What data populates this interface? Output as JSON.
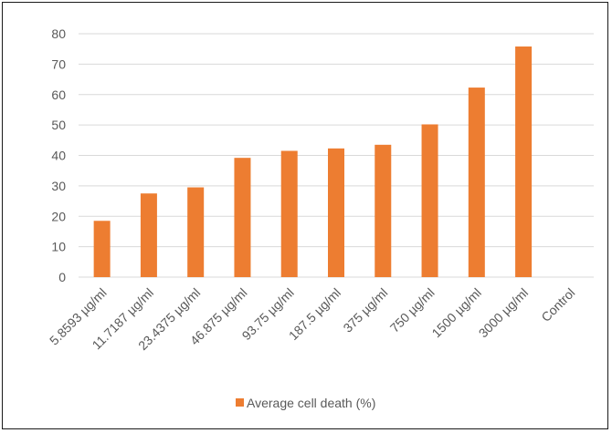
{
  "chart_data": {
    "type": "bar",
    "categories": [
      "5.8593 µg/ml",
      "11.7187 µg/ml",
      "23.4375 µg/ml",
      "46.875 µg/ml",
      "93.75 µg/ml",
      "187.5 µg/ml",
      "375 µg/ml",
      "750 µg/ml",
      "1500 µg/ml",
      "3000 µg/ml",
      "Control"
    ],
    "series": [
      {
        "name": "Average cell death (%)",
        "color": "#ED7D31",
        "values": [
          18.5,
          27.5,
          29.5,
          39.2,
          41.5,
          42.3,
          43.5,
          50.2,
          62.3,
          75.8,
          0
        ]
      }
    ],
    "yticks": [
      0,
      10,
      20,
      30,
      40,
      50,
      60,
      70,
      80
    ],
    "ylim": [
      0,
      80
    ],
    "grid": true,
    "legend_position": "bottom"
  }
}
